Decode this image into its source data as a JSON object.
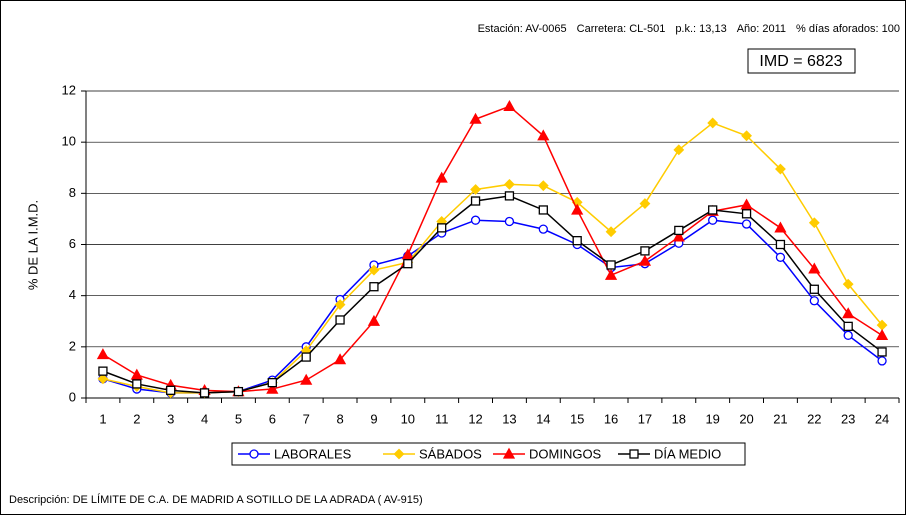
{
  "chart_data": {
    "type": "line",
    "header": [
      "Estación: AV-0065",
      "Carretera: CL-501",
      "p.k.: 13,13",
      "Año: 2011",
      "% días aforados: 100"
    ],
    "annotation": "IMD = 6823",
    "ylabel": "% DE LA I.M.D.",
    "description": "Descripción: DE LÍMITE DE C.A. DE MADRID A SOTILLO DE LA ADRADA ( AV-915)",
    "categories": [
      "1",
      "2",
      "3",
      "4",
      "5",
      "6",
      "7",
      "8",
      "9",
      "10",
      "11",
      "12",
      "13",
      "14",
      "15",
      "16",
      "17",
      "18",
      "19",
      "20",
      "21",
      "22",
      "23",
      "24"
    ],
    "series": [
      {
        "name": "LABORALES",
        "color": "#0000ff",
        "marker": "circle",
        "values": [
          0.75,
          0.35,
          0.2,
          0.2,
          0.25,
          0.7,
          2.0,
          3.85,
          5.2,
          5.55,
          6.45,
          6.95,
          6.9,
          6.6,
          6.0,
          5.1,
          5.25,
          6.05,
          6.95,
          6.8,
          5.5,
          3.8,
          2.45,
          1.45
        ]
      },
      {
        "name": "SÁBADOS",
        "color": "#ffcc00",
        "marker": "diamond",
        "values": [
          0.75,
          0.45,
          0.2,
          0.2,
          0.25,
          0.6,
          1.85,
          3.65,
          5.0,
          5.3,
          6.9,
          8.15,
          8.35,
          8.3,
          7.65,
          6.5,
          7.6,
          9.7,
          10.75,
          10.25,
          8.95,
          6.85,
          4.45,
          2.85
        ]
      },
      {
        "name": "DOMINGOS",
        "color": "#ff0000",
        "marker": "triangle",
        "values": [
          1.7,
          0.9,
          0.5,
          0.3,
          0.25,
          0.35,
          0.7,
          1.5,
          3.0,
          5.6,
          8.6,
          10.9,
          11.4,
          10.25,
          7.35,
          4.8,
          5.35,
          6.3,
          7.3,
          7.55,
          6.65,
          5.05,
          3.3,
          2.45
        ]
      },
      {
        "name": "DÍA MEDIO",
        "color": "#000000",
        "marker": "square",
        "values": [
          1.05,
          0.55,
          0.3,
          0.2,
          0.25,
          0.6,
          1.6,
          3.05,
          4.35,
          5.25,
          6.65,
          7.7,
          7.9,
          7.35,
          6.15,
          5.2,
          5.75,
          6.55,
          7.35,
          7.2,
          6.0,
          4.25,
          2.8,
          1.8
        ]
      }
    ],
    "ylim": [
      0,
      12
    ],
    "yticks": [
      0,
      2,
      4,
      6,
      8,
      10,
      12
    ],
    "grid": true,
    "legend": "bottom"
  }
}
